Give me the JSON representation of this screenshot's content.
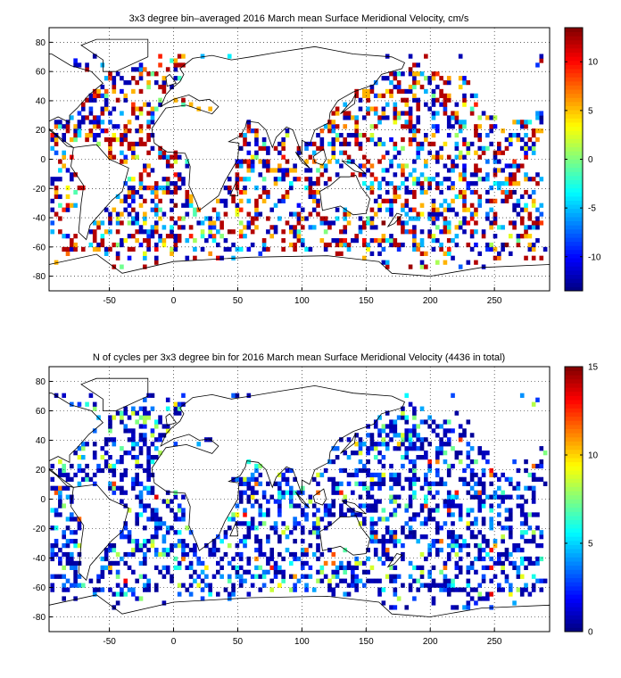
{
  "chart_data": [
    {
      "type": "heatmap",
      "title": "3x3 degree bin–averaged 2016 March mean Surface Meridional Velocity, cm/s",
      "xlim": [
        -97,
        293
      ],
      "ylim": [
        -90,
        90
      ],
      "xticks": [
        -50,
        0,
        50,
        100,
        150,
        200,
        250
      ],
      "yticks": [
        -80,
        -60,
        -40,
        -20,
        0,
        20,
        40,
        60,
        80
      ],
      "xtick_labels": [
        "-50",
        "0",
        "50",
        "100",
        "150",
        "200",
        "250"
      ],
      "ytick_labels": [
        "-80",
        "-60",
        "-40",
        "-20",
        "0",
        "20",
        "40",
        "60",
        "80"
      ],
      "grid": true,
      "bin_size_deg": 3,
      "colormap": "jet",
      "clim": [
        -13.5,
        13.5
      ],
      "colorbar_ticks": [
        -10,
        -5,
        0,
        5,
        10
      ],
      "colorbar_tick_labels": [
        "-10",
        "-5",
        "0",
        "5",
        "10"
      ],
      "note": ""
    },
    {
      "type": "heatmap",
      "title": "N of cycles per 3x3 degree bin for 2016 March mean Surface Meridional Velocity (4436 in total)",
      "xlim": [
        -97,
        293
      ],
      "ylim": [
        -90,
        90
      ],
      "xticks": [
        -50,
        0,
        50,
        100,
        150,
        200,
        250
      ],
      "yticks": [
        -80,
        -60,
        -40,
        -20,
        0,
        20,
        40,
        60,
        80
      ],
      "xtick_labels": [
        "-50",
        "0",
        "50",
        "100",
        "150",
        "200",
        "250"
      ],
      "ytick_labels": [
        "-80",
        "-60",
        "-40",
        "-20",
        "0",
        "20",
        "40",
        "60",
        "80"
      ],
      "grid": true,
      "bin_size_deg": 3,
      "colormap": "jet",
      "clim": [
        0,
        15
      ],
      "colorbar_ticks": [
        0,
        5,
        10,
        15
      ],
      "colorbar_tick_labels": [
        "0",
        "5",
        "10",
        "15"
      ],
      "total_cycles": 4436
    }
  ],
  "colors": {
    "land_outline": "#000000",
    "grid": "#000000",
    "background": "#ffffff"
  }
}
